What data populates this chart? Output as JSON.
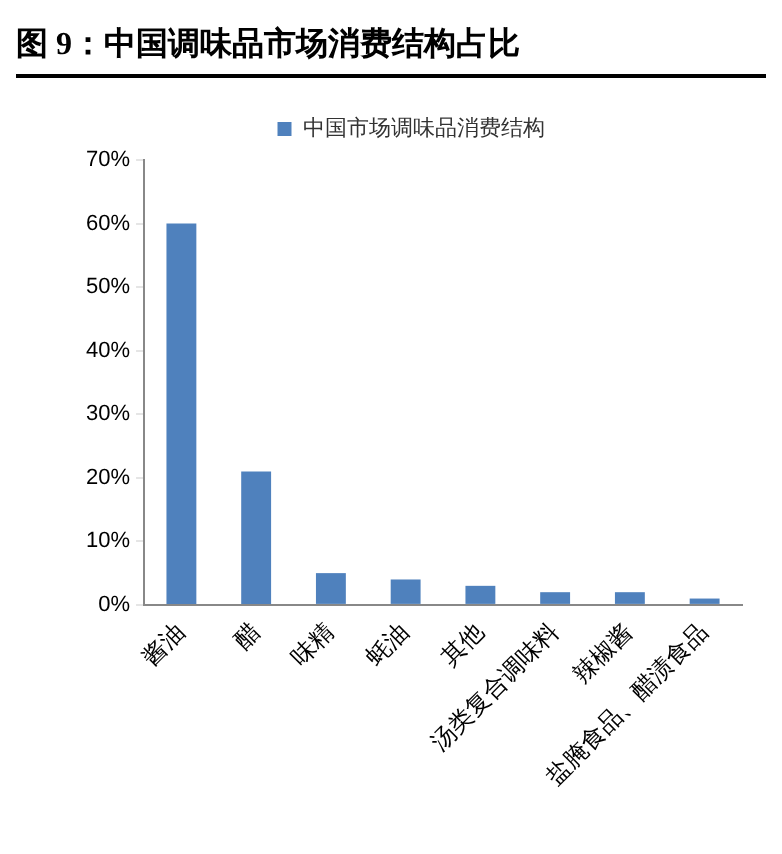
{
  "chart_data": {
    "type": "bar",
    "title": "图 9：中国调味品市场消费结构占比",
    "categories": [
      "酱油",
      "醋",
      "味精",
      "蚝油",
      "其他",
      "汤类复合调味料",
      "辣椒酱",
      "盐腌食品、醋渍食品"
    ],
    "series": [
      {
        "name": "中国市场调味品消费结构",
        "color": "#4f81bd",
        "values": [
          60,
          21,
          5,
          4,
          3,
          2,
          2,
          1
        ]
      }
    ],
    "ylim": [
      0,
      70
    ],
    "yticks": [
      {
        "value": 0,
        "label": "0%"
      },
      {
        "value": 10,
        "label": "10%"
      },
      {
        "value": 20,
        "label": "20%"
      },
      {
        "value": 30,
        "label": "30%"
      },
      {
        "value": 40,
        "label": "40%"
      },
      {
        "value": 50,
        "label": "50%"
      },
      {
        "value": 60,
        "label": "60%"
      },
      {
        "value": 70,
        "label": "70%"
      }
    ],
    "grid": false,
    "legend": "top"
  }
}
